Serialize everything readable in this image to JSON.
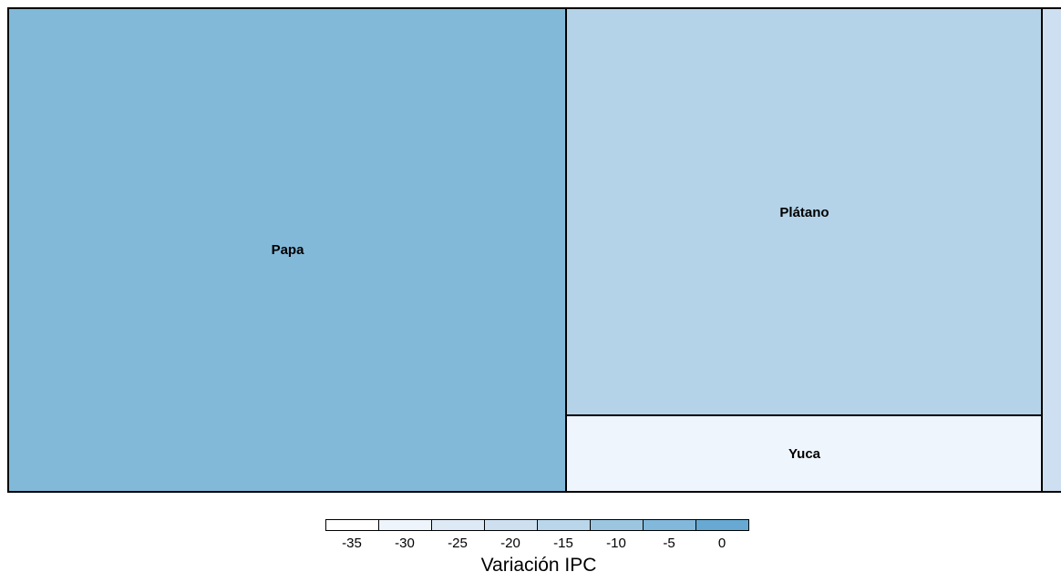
{
  "chart_data": {
    "type": "treemap",
    "tiles": [
      {
        "label": "Papa",
        "value": -3,
        "color": "#82b9d9"
      },
      {
        "label": "Plátano",
        "value": -13,
        "color": "#b4d3e8"
      },
      {
        "label": "Yuca",
        "value": -33,
        "color": "#eef5fc"
      },
      {
        "label": "",
        "value": -18,
        "color": "#cddff0"
      }
    ],
    "legend": {
      "title": "Variación IPC",
      "ticks": [
        "-35",
        "-30",
        "-25",
        "-20",
        "-15",
        "-10",
        "-5",
        "0"
      ],
      "colors": [
        "#ffffff",
        "#eef4fb",
        "#dde9f5",
        "#cee0f0",
        "#bad6ea",
        "#9cc6e0",
        "#82b8da",
        "#67a9d2"
      ]
    }
  }
}
